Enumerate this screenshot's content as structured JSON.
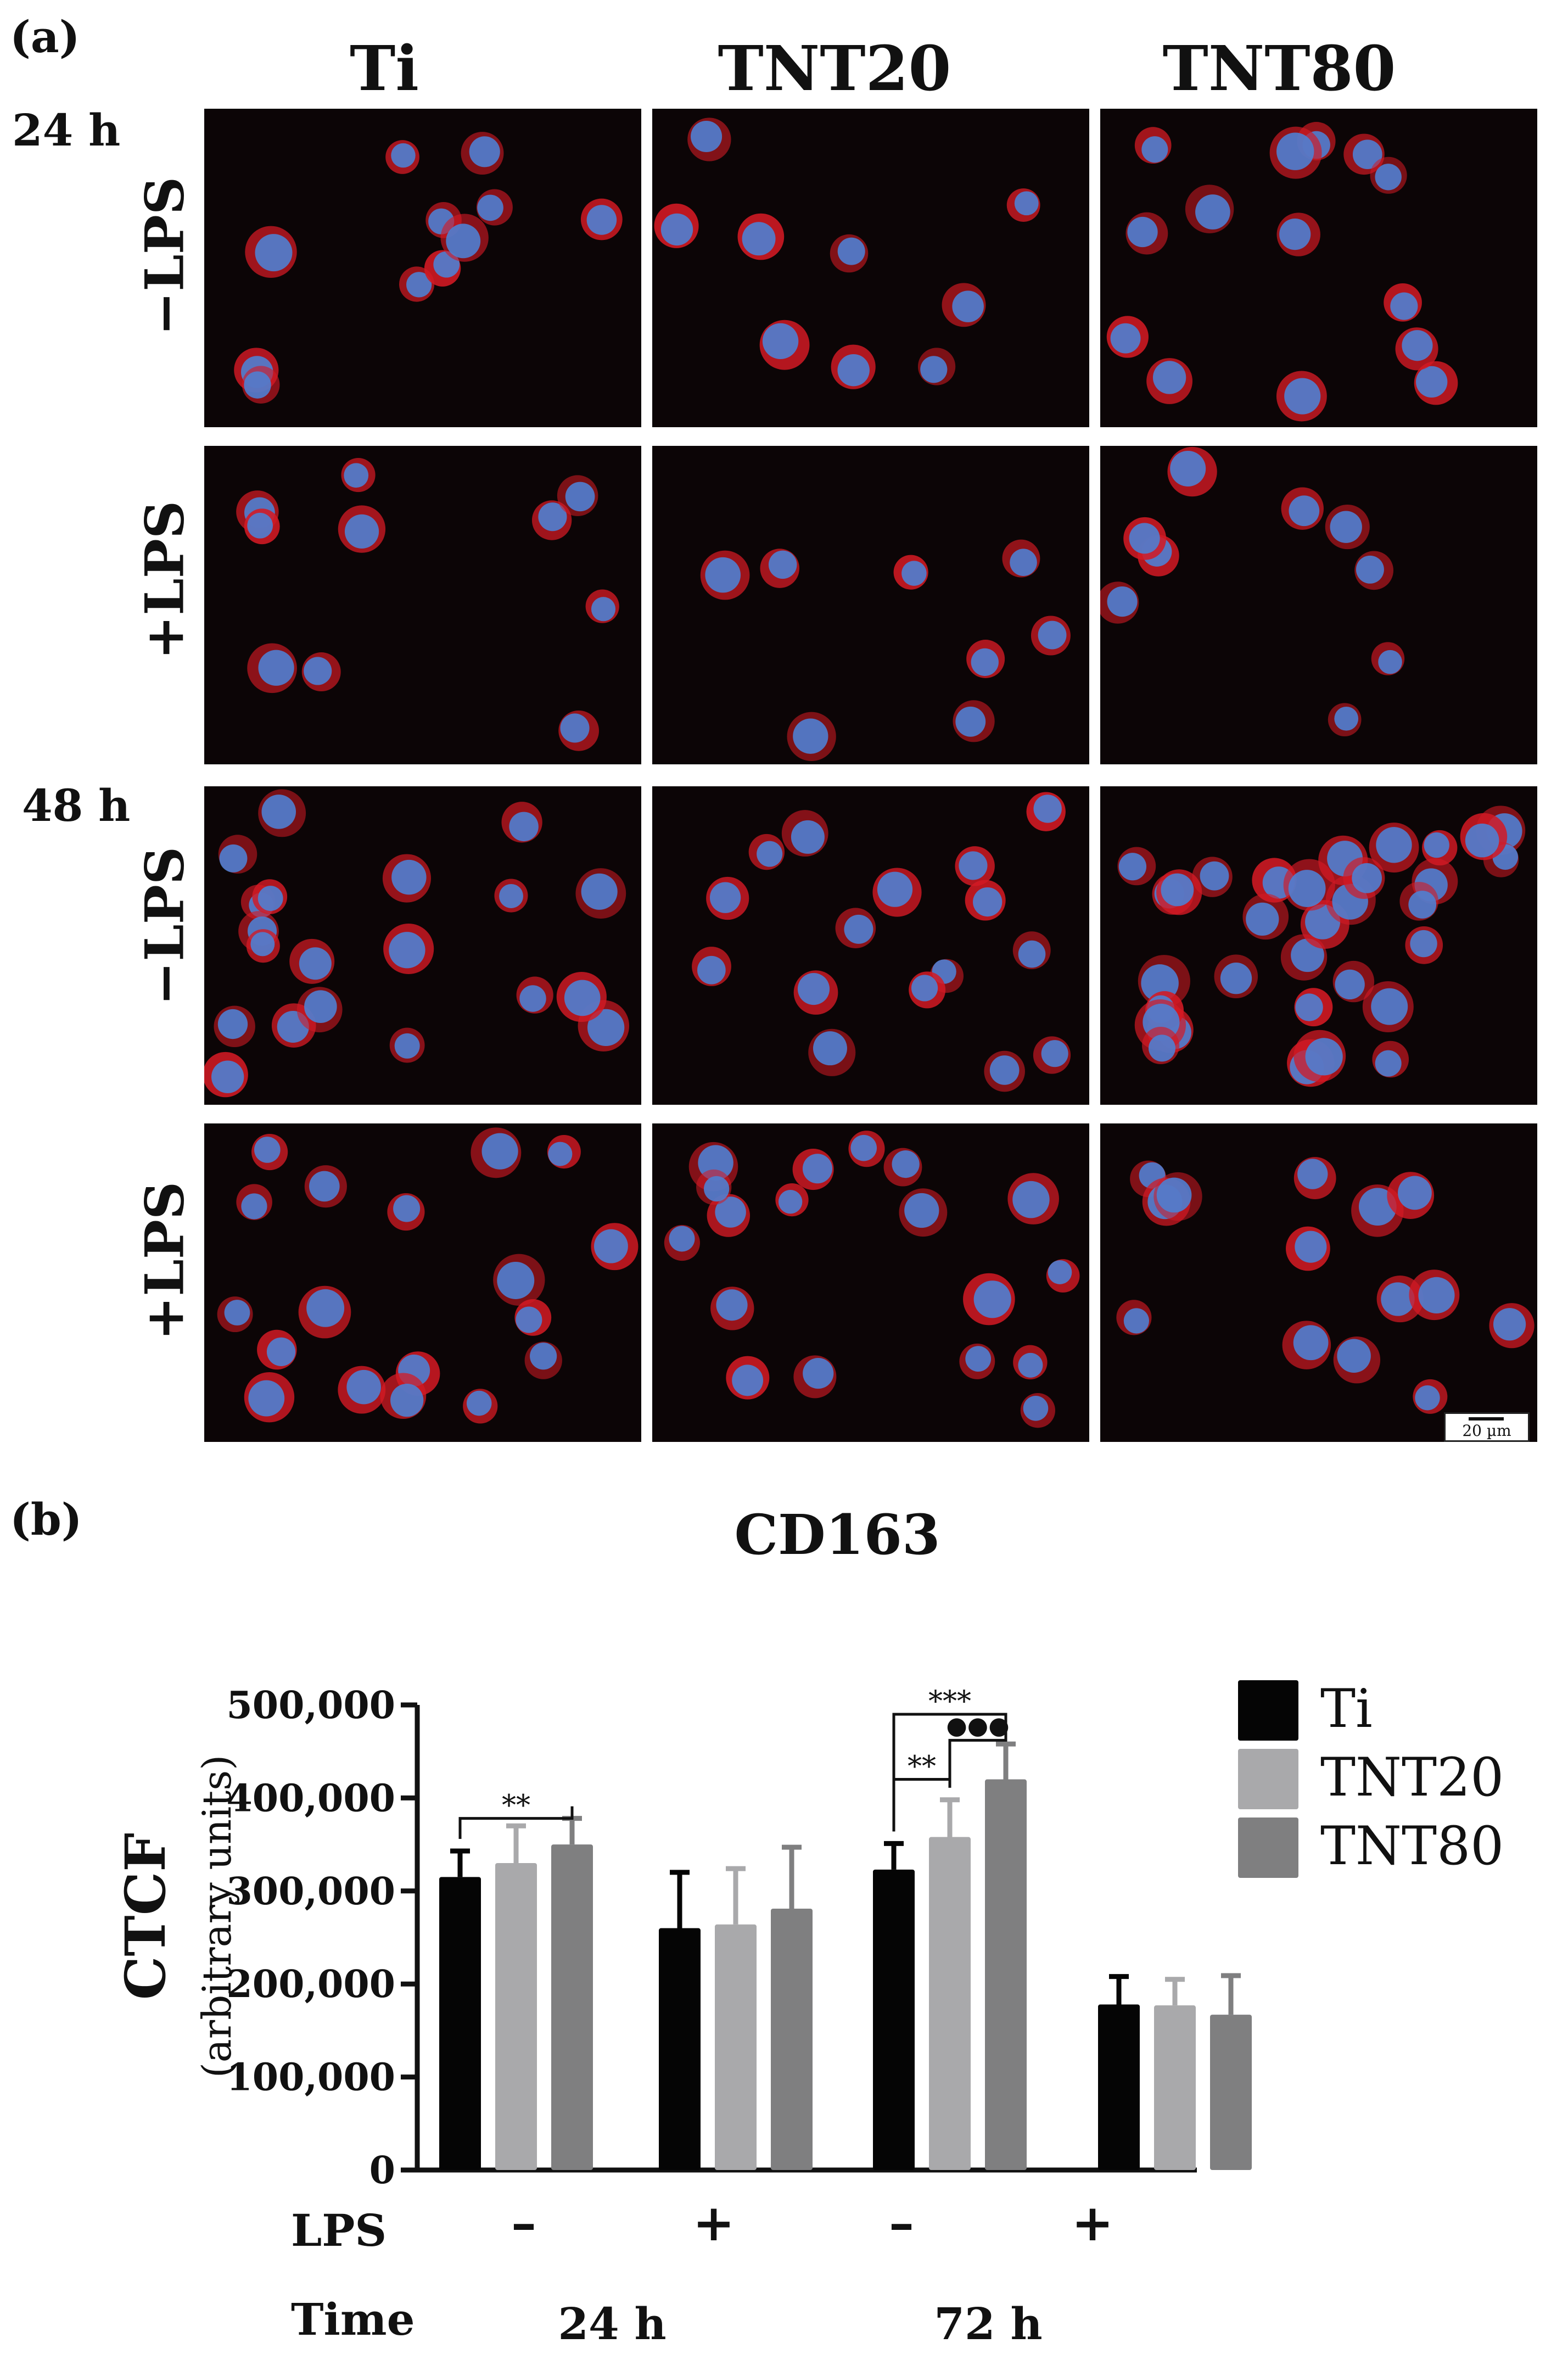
{
  "panel_a": {
    "label": "(a)",
    "columns": [
      "Ti",
      "TNT20",
      "TNT80"
    ],
    "time_labels": [
      "24 h",
      "48 h"
    ],
    "row_labels": [
      "−LPS",
      "+LPS",
      "−LPS",
      "+LPS"
    ],
    "scale_bar": "20 µm",
    "colors": {
      "cytoplasm": "#d21a24",
      "nucleus": "#4f80d2",
      "background": "#0c0506"
    }
  },
  "panel_b": {
    "label": "(b)",
    "legend": [
      "Ti",
      "TNT20",
      "TNT80"
    ],
    "significance": {
      "g1": "**",
      "g3_a": "***",
      "g3_b": "●●●",
      "g3_c": "**"
    },
    "row_labels": {
      "lps": "LPS",
      "time": "Time"
    },
    "lps_signs": [
      "–",
      "+",
      "–",
      "+"
    ],
    "time_values": [
      "24 h",
      "72 h"
    ]
  },
  "chart_data": {
    "type": "bar",
    "title": "CD163",
    "ylabel": "CTCF\n(arbitrary units)",
    "ylim": [
      0,
      500000
    ],
    "yticks": [
      "0",
      "100,000",
      "200,000",
      "300,000",
      "400,000",
      "500,000"
    ],
    "ytick_values": [
      0,
      100000,
      200000,
      300000,
      400000,
      500000
    ],
    "categories": [
      "24 h −LPS",
      "24 h +LPS",
      "72 h −LPS",
      "72 h +LPS"
    ],
    "series": [
      {
        "name": "Ti",
        "color": "#050505",
        "values": [
          315000,
          260000,
          323000,
          178000
        ],
        "errors": [
          28000,
          60000,
          28000,
          30000
        ]
      },
      {
        "name": "TNT20",
        "color": "#a9a9ab",
        "values": [
          330000,
          264000,
          358000,
          177000
        ],
        "errors": [
          40000,
          60000,
          40000,
          28000
        ]
      },
      {
        "name": "TNT80",
        "color": "#7f7f80",
        "values": [
          350000,
          281000,
          420000,
          167000
        ],
        "errors": [
          28000,
          66000,
          38000,
          42000
        ]
      }
    ],
    "legend_position": "right",
    "grid": false
  }
}
